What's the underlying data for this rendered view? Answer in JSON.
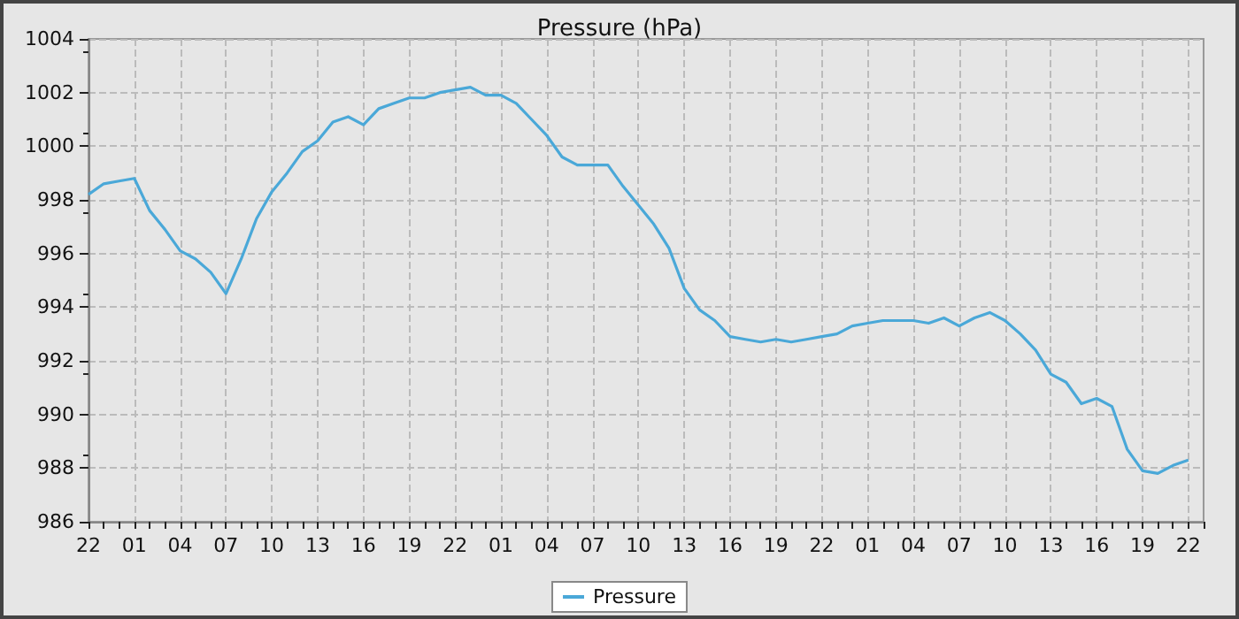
{
  "chart_data": {
    "type": "line",
    "title": "Pressure (hPa)",
    "categories": [
      "22",
      null,
      null,
      "01",
      null,
      null,
      "04",
      null,
      null,
      "07",
      null,
      null,
      "10",
      null,
      null,
      "13",
      null,
      null,
      "16",
      null,
      null,
      "19",
      null,
      null,
      "22",
      null,
      null,
      "01",
      null,
      null,
      "04",
      null,
      null,
      "07",
      null,
      null,
      "10",
      null,
      null,
      "13",
      null,
      null,
      "16",
      null,
      null,
      "19",
      null,
      null,
      "22",
      null,
      null,
      "01",
      null,
      null,
      "04",
      null,
      null,
      "07",
      null,
      null,
      "10",
      null,
      null,
      "13",
      null,
      null,
      "16",
      null,
      null,
      "19",
      null,
      null,
      "22",
      null
    ],
    "series": [
      {
        "name": "Pressure",
        "color": "#4aa8d8",
        "values": [
          998.2,
          998.6,
          998.7,
          998.8,
          997.6,
          996.9,
          996.1,
          995.8,
          995.3,
          994.5,
          995.8,
          997.3,
          998.3,
          999.0,
          999.8,
          1000.2,
          1000.9,
          1001.1,
          1000.8,
          1001.4,
          1001.6,
          1001.8,
          1001.8,
          1002.0,
          1002.1,
          1002.2,
          1001.9,
          1001.9,
          1001.6,
          1001.0,
          1000.4,
          999.6,
          999.3,
          999.3,
          999.3,
          998.5,
          997.8,
          997.1,
          996.2,
          994.7,
          993.9,
          993.5,
          992.9,
          992.8,
          992.7,
          992.8,
          992.7,
          992.8,
          992.9,
          993.0,
          993.3,
          993.4,
          993.5,
          993.5,
          993.5,
          993.4,
          993.6,
          993.3,
          993.6,
          993.8,
          993.5,
          993.0,
          992.4,
          991.5,
          991.2,
          990.4,
          990.6,
          990.3,
          988.7,
          987.9,
          987.8,
          988.1,
          988.3,
          null
        ]
      }
    ],
    "ylim": [
      986,
      1004
    ],
    "yticks": [
      986,
      988,
      990,
      992,
      994,
      996,
      998,
      1000,
      1002,
      1004
    ],
    "grid": true,
    "legend": "bottom",
    "marker": "none",
    "line_style": "solid"
  }
}
